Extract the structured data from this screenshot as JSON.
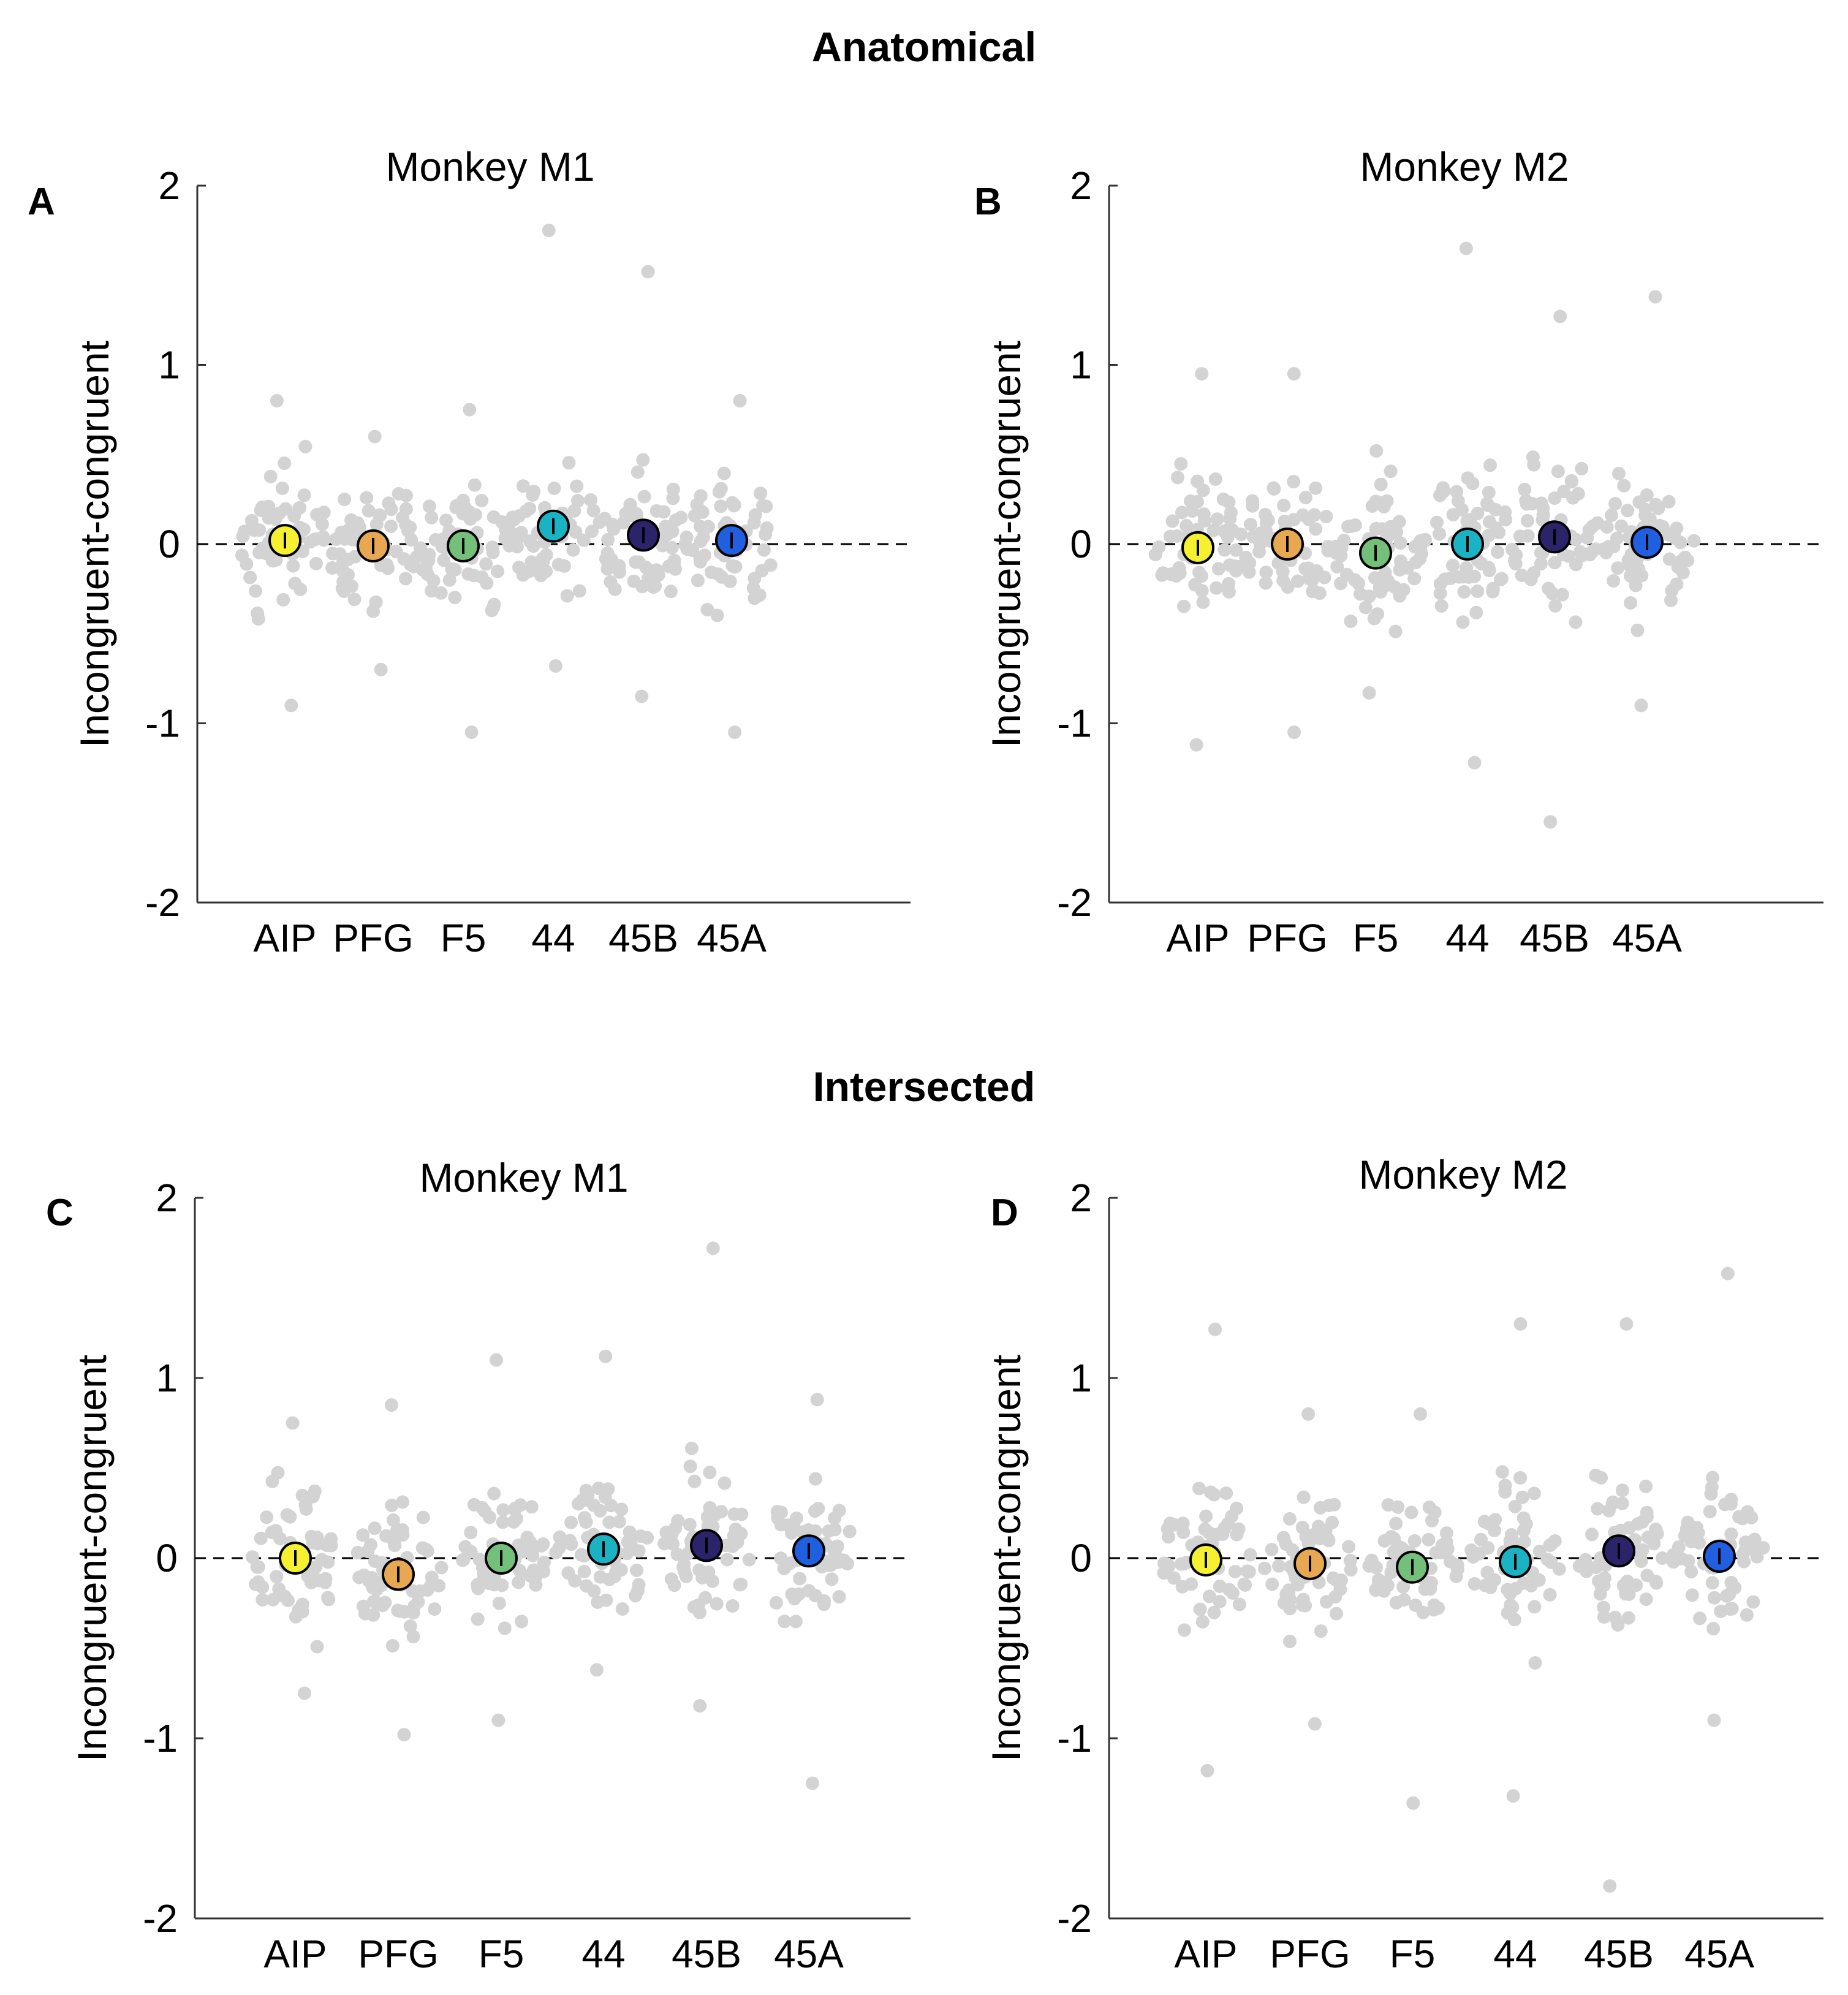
{
  "sections": {
    "top": "Anatomical",
    "bottom": "Intersected"
  },
  "colors": {
    "scatter": "#d3d3d3",
    "AIP": "#f5f030",
    "PFG": "#e8a851",
    "F5": "#74c07a",
    "44": "#1ab3c3",
    "45B": "#2b246b",
    "45A": "#1f5fe0"
  },
  "chart_data": [
    {
      "panel": "A",
      "type": "scatter",
      "title": "Monkey M1",
      "ylabel": "Incongruent-congruent",
      "xlabel": "",
      "ylim": [
        -2,
        2
      ],
      "yticks": [
        "-2",
        "-1",
        "0",
        "1",
        "2"
      ],
      "categories": [
        "AIP",
        "PFG",
        "F5",
        "44",
        "45B",
        "45A"
      ],
      "means": [
        0.02,
        -0.01,
        -0.01,
        0.1,
        0.05,
        0.02
      ],
      "max": [
        0.8,
        0.6,
        0.75,
        1.75,
        1.52,
        0.8
      ],
      "min": [
        -0.9,
        -0.7,
        -1.05,
        -0.68,
        -0.85,
        -1.05
      ]
    },
    {
      "panel": "B",
      "type": "scatter",
      "title": "Monkey M2",
      "ylabel": "Incongruent-congruent",
      "xlabel": "",
      "ylim": [
        -2,
        2
      ],
      "yticks": [
        "-2",
        "-1",
        "0",
        "1",
        "2"
      ],
      "categories": [
        "AIP",
        "PFG",
        "F5",
        "44",
        "45B",
        "45A"
      ],
      "means": [
        -0.02,
        0.0,
        -0.05,
        0.0,
        0.04,
        0.01
      ],
      "max": [
        0.95,
        0.95,
        0.52,
        1.65,
        1.27,
        1.38
      ],
      "min": [
        -1.12,
        -1.05,
        -0.83,
        -1.22,
        -1.55,
        -0.9
      ]
    },
    {
      "panel": "C",
      "type": "scatter",
      "title": "Monkey M1",
      "ylabel": "Incongruent-congruent",
      "xlabel": "",
      "ylim": [
        -2,
        2
      ],
      "yticks": [
        "-2",
        "-1",
        "0",
        "1",
        "2"
      ],
      "categories": [
        "AIP",
        "PFG",
        "F5",
        "44",
        "45B",
        "45A"
      ],
      "means": [
        0.0,
        -0.09,
        0.0,
        0.05,
        0.07,
        0.04
      ],
      "max": [
        0.75,
        0.85,
        1.1,
        1.12,
        1.72,
        0.88
      ],
      "min": [
        -0.75,
        -0.98,
        -0.9,
        -0.62,
        -0.82,
        -1.25
      ]
    },
    {
      "panel": "D",
      "type": "scatter",
      "title": "Monkey M2",
      "ylabel": "Incongruent-congruent",
      "xlabel": "",
      "ylim": [
        -2,
        2
      ],
      "yticks": [
        "-2",
        "-1",
        "0",
        "1",
        "2"
      ],
      "categories": [
        "AIP",
        "PFG",
        "F5",
        "44",
        "45B",
        "45A"
      ],
      "means": [
        -0.01,
        -0.03,
        -0.05,
        -0.02,
        0.04,
        0.01
      ],
      "max": [
        1.27,
        0.8,
        0.8,
        1.3,
        1.3,
        1.58
      ],
      "min": [
        -1.18,
        -0.92,
        -1.36,
        -1.32,
        -1.82,
        -0.9
      ]
    }
  ]
}
